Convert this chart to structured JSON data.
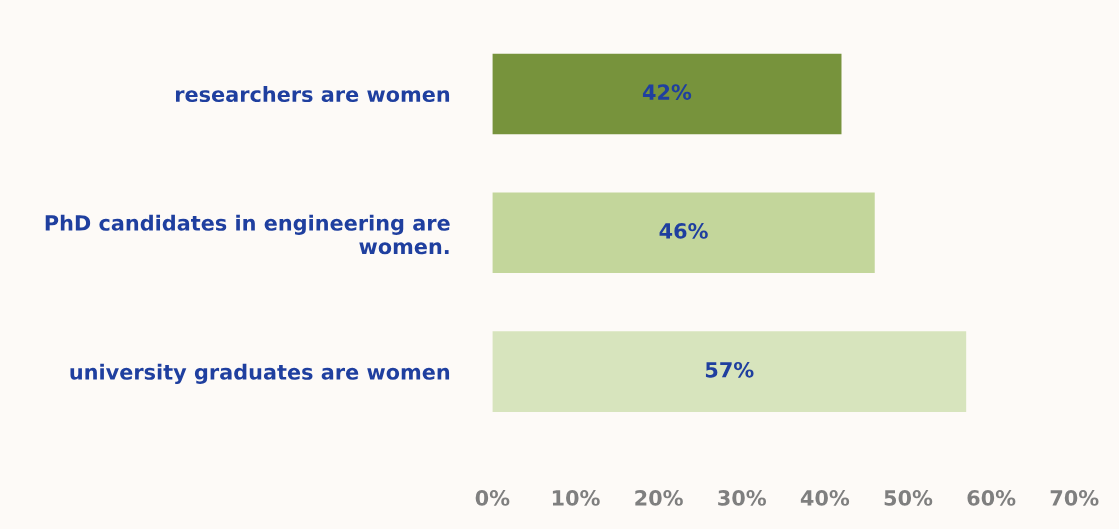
{
  "chart_data": {
    "type": "bar",
    "orientation": "horizontal",
    "categories": [
      "researchers are women",
      "PhD candidates in engineering are\nwomen.",
      "university graduates are women"
    ],
    "values": [
      42,
      46,
      57
    ],
    "colors": [
      "#77933c",
      "#c3d69b",
      "#d7e4bd"
    ],
    "value_labels": [
      "42%",
      "46%",
      "57%"
    ],
    "xlim": [
      0,
      70
    ],
    "xticks": [
      {
        "value": 0,
        "label": "0%"
      },
      {
        "value": 10,
        "label": "10%"
      },
      {
        "value": 20,
        "label": "20%"
      },
      {
        "value": 30,
        "label": "30%"
      },
      {
        "value": 40,
        "label": "40%"
      },
      {
        "value": 50,
        "label": "50%"
      },
      {
        "value": 60,
        "label": "60%"
      },
      {
        "value": 70,
        "label": "70%"
      }
    ]
  }
}
